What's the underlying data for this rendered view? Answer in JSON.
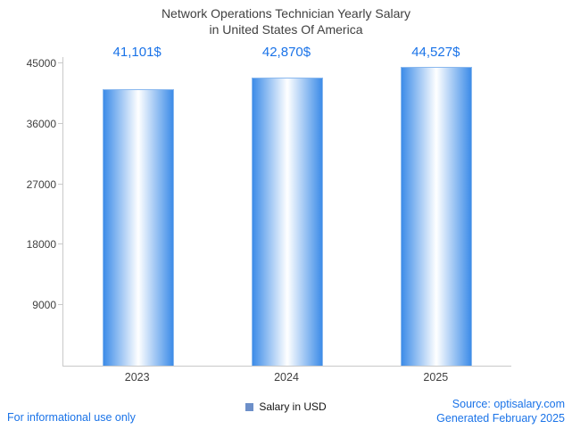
{
  "title": {
    "line1": "Network Operations Technician Yearly Salary",
    "line2": "in United States Of America"
  },
  "chart_data": {
    "type": "bar",
    "title": "Network Operations Technician Yearly Salary in United States Of America",
    "categories": [
      "2023",
      "2024",
      "2025"
    ],
    "values": [
      41101,
      42870,
      44527
    ],
    "value_labels": [
      "41,101$",
      "42,870$",
      "44,527$"
    ],
    "xlabel": "",
    "ylabel": "",
    "ylim": [
      0,
      45000
    ],
    "yticks": [
      9000,
      18000,
      27000,
      36000,
      45000
    ],
    "grid": false,
    "legend_position": "bottom",
    "legend": [
      {
        "label": "Salary in USD",
        "color": "#6d8fc9"
      }
    ],
    "bar_gradient": [
      "#3d8ce8",
      "#ffffff",
      "#3d8ce8"
    ]
  },
  "footer": {
    "left": "For informational use only",
    "source": "Source: optisalary.com",
    "generated": "Generated February 2025"
  },
  "colors": {
    "accent_blue": "#1a73e8",
    "title": "#404040",
    "axis": "#c9c9c9",
    "tick_label": "#3f3f3f"
  }
}
